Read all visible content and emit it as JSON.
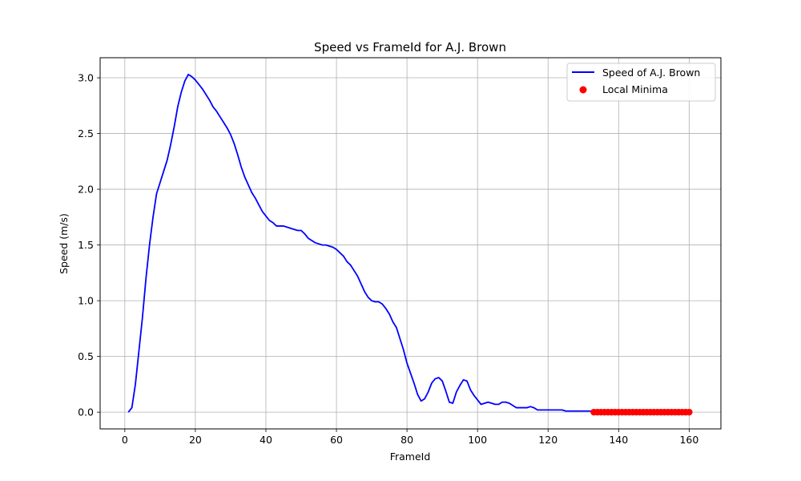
{
  "chart_data": {
    "type": "line",
    "title": "Speed vs FrameId for A.J. Brown",
    "xlabel": "FrameId",
    "ylabel": "Speed (m/s)",
    "xlim": [
      -7,
      169
    ],
    "ylim": [
      -0.15,
      3.18
    ],
    "xticks": [
      0,
      20,
      40,
      60,
      80,
      100,
      120,
      140,
      160
    ],
    "yticks": [
      0.0,
      0.5,
      1.0,
      1.5,
      2.0,
      2.5,
      3.0
    ],
    "grid": true,
    "legend_position": "top-right",
    "series": [
      {
        "name": "Speed of A.J. Brown",
        "type": "line",
        "color": "#0000ff",
        "points": [
          [
            1,
            0.0
          ],
          [
            2,
            0.04
          ],
          [
            3,
            0.25
          ],
          [
            4,
            0.55
          ],
          [
            5,
            0.85
          ],
          [
            6,
            1.2
          ],
          [
            7,
            1.5
          ],
          [
            8,
            1.75
          ],
          [
            9,
            1.96
          ],
          [
            10,
            2.06
          ],
          [
            11,
            2.16
          ],
          [
            12,
            2.26
          ],
          [
            13,
            2.4
          ],
          [
            14,
            2.56
          ],
          [
            15,
            2.74
          ],
          [
            16,
            2.87
          ],
          [
            17,
            2.97
          ],
          [
            18,
            3.03
          ],
          [
            19,
            3.01
          ],
          [
            20,
            2.98
          ],
          [
            21,
            2.94
          ],
          [
            22,
            2.9
          ],
          [
            23,
            2.85
          ],
          [
            24,
            2.8
          ],
          [
            25,
            2.74
          ],
          [
            26,
            2.7
          ],
          [
            27,
            2.65
          ],
          [
            28,
            2.6
          ],
          [
            29,
            2.55
          ],
          [
            30,
            2.49
          ],
          [
            31,
            2.41
          ],
          [
            32,
            2.31
          ],
          [
            33,
            2.2
          ],
          [
            34,
            2.11
          ],
          [
            35,
            2.04
          ],
          [
            36,
            1.97
          ],
          [
            37,
            1.92
          ],
          [
            38,
            1.86
          ],
          [
            39,
            1.8
          ],
          [
            40,
            1.76
          ],
          [
            41,
            1.72
          ],
          [
            42,
            1.7
          ],
          [
            43,
            1.67
          ],
          [
            44,
            1.67
          ],
          [
            45,
            1.67
          ],
          [
            46,
            1.66
          ],
          [
            47,
            1.65
          ],
          [
            48,
            1.64
          ],
          [
            49,
            1.63
          ],
          [
            50,
            1.63
          ],
          [
            51,
            1.6
          ],
          [
            52,
            1.56
          ],
          [
            53,
            1.54
          ],
          [
            54,
            1.52
          ],
          [
            55,
            1.51
          ],
          [
            56,
            1.5
          ],
          [
            57,
            1.5
          ],
          [
            58,
            1.49
          ],
          [
            59,
            1.48
          ],
          [
            60,
            1.46
          ],
          [
            61,
            1.43
          ],
          [
            62,
            1.4
          ],
          [
            63,
            1.35
          ],
          [
            64,
            1.32
          ],
          [
            65,
            1.27
          ],
          [
            66,
            1.22
          ],
          [
            67,
            1.15
          ],
          [
            68,
            1.08
          ],
          [
            69,
            1.03
          ],
          [
            70,
            1.0
          ],
          [
            71,
            0.99
          ],
          [
            72,
            0.99
          ],
          [
            73,
            0.97
          ],
          [
            74,
            0.93
          ],
          [
            75,
            0.88
          ],
          [
            76,
            0.81
          ],
          [
            77,
            0.76
          ],
          [
            78,
            0.66
          ],
          [
            79,
            0.56
          ],
          [
            80,
            0.44
          ],
          [
            81,
            0.35
          ],
          [
            82,
            0.26
          ],
          [
            83,
            0.16
          ],
          [
            84,
            0.1
          ],
          [
            85,
            0.12
          ],
          [
            86,
            0.18
          ],
          [
            87,
            0.26
          ],
          [
            88,
            0.3
          ],
          [
            89,
            0.31
          ],
          [
            90,
            0.28
          ],
          [
            91,
            0.19
          ],
          [
            92,
            0.09
          ],
          [
            93,
            0.08
          ],
          [
            94,
            0.18
          ],
          [
            95,
            0.24
          ],
          [
            96,
            0.29
          ],
          [
            97,
            0.28
          ],
          [
            98,
            0.2
          ],
          [
            99,
            0.15
          ],
          [
            100,
            0.11
          ],
          [
            101,
            0.07
          ],
          [
            102,
            0.08
          ],
          [
            103,
            0.09
          ],
          [
            104,
            0.08
          ],
          [
            105,
            0.07
          ],
          [
            106,
            0.07
          ],
          [
            107,
            0.09
          ],
          [
            108,
            0.09
          ],
          [
            109,
            0.08
          ],
          [
            110,
            0.06
          ],
          [
            111,
            0.04
          ],
          [
            112,
            0.04
          ],
          [
            113,
            0.04
          ],
          [
            114,
            0.04
          ],
          [
            115,
            0.05
          ],
          [
            116,
            0.04
          ],
          [
            117,
            0.02
          ],
          [
            118,
            0.02
          ],
          [
            119,
            0.02
          ],
          [
            120,
            0.02
          ],
          [
            121,
            0.02
          ],
          [
            122,
            0.02
          ],
          [
            123,
            0.02
          ],
          [
            124,
            0.02
          ],
          [
            125,
            0.01
          ],
          [
            126,
            0.01
          ],
          [
            127,
            0.01
          ],
          [
            128,
            0.01
          ],
          [
            129,
            0.01
          ],
          [
            130,
            0.01
          ],
          [
            131,
            0.01
          ],
          [
            132,
            0.01
          ],
          [
            133,
            0.0
          ],
          [
            134,
            0.0
          ],
          [
            135,
            0.0
          ],
          [
            136,
            0.0
          ],
          [
            137,
            0.0
          ],
          [
            138,
            0.0
          ],
          [
            139,
            0.0
          ],
          [
            140,
            0.0
          ],
          [
            141,
            0.0
          ],
          [
            142,
            0.0
          ],
          [
            143,
            0.0
          ],
          [
            144,
            0.0
          ],
          [
            145,
            0.0
          ],
          [
            146,
            0.0
          ],
          [
            147,
            0.0
          ],
          [
            148,
            0.0
          ],
          [
            149,
            0.0
          ],
          [
            150,
            0.0
          ],
          [
            151,
            0.0
          ],
          [
            152,
            0.0
          ],
          [
            153,
            0.0
          ],
          [
            154,
            0.0
          ],
          [
            155,
            0.0
          ],
          [
            156,
            0.0
          ],
          [
            157,
            0.0
          ],
          [
            158,
            0.0
          ],
          [
            159,
            0.0
          ],
          [
            160,
            0.0
          ]
        ]
      },
      {
        "name": "Local Minima",
        "type": "scatter",
        "color": "#ff0000",
        "points": [
          [
            133,
            0.0
          ],
          [
            134,
            0.0
          ],
          [
            135,
            0.0
          ],
          [
            136,
            0.0
          ],
          [
            137,
            0.0
          ],
          [
            138,
            0.0
          ],
          [
            139,
            0.0
          ],
          [
            140,
            0.0
          ],
          [
            141,
            0.0
          ],
          [
            142,
            0.0
          ],
          [
            143,
            0.0
          ],
          [
            144,
            0.0
          ],
          [
            145,
            0.0
          ],
          [
            146,
            0.0
          ],
          [
            147,
            0.0
          ],
          [
            148,
            0.0
          ],
          [
            149,
            0.0
          ],
          [
            150,
            0.0
          ],
          [
            151,
            0.0
          ],
          [
            152,
            0.0
          ],
          [
            153,
            0.0
          ],
          [
            154,
            0.0
          ],
          [
            155,
            0.0
          ],
          [
            156,
            0.0
          ],
          [
            157,
            0.0
          ],
          [
            158,
            0.0
          ],
          [
            159,
            0.0
          ],
          [
            160,
            0.0
          ]
        ]
      }
    ]
  }
}
